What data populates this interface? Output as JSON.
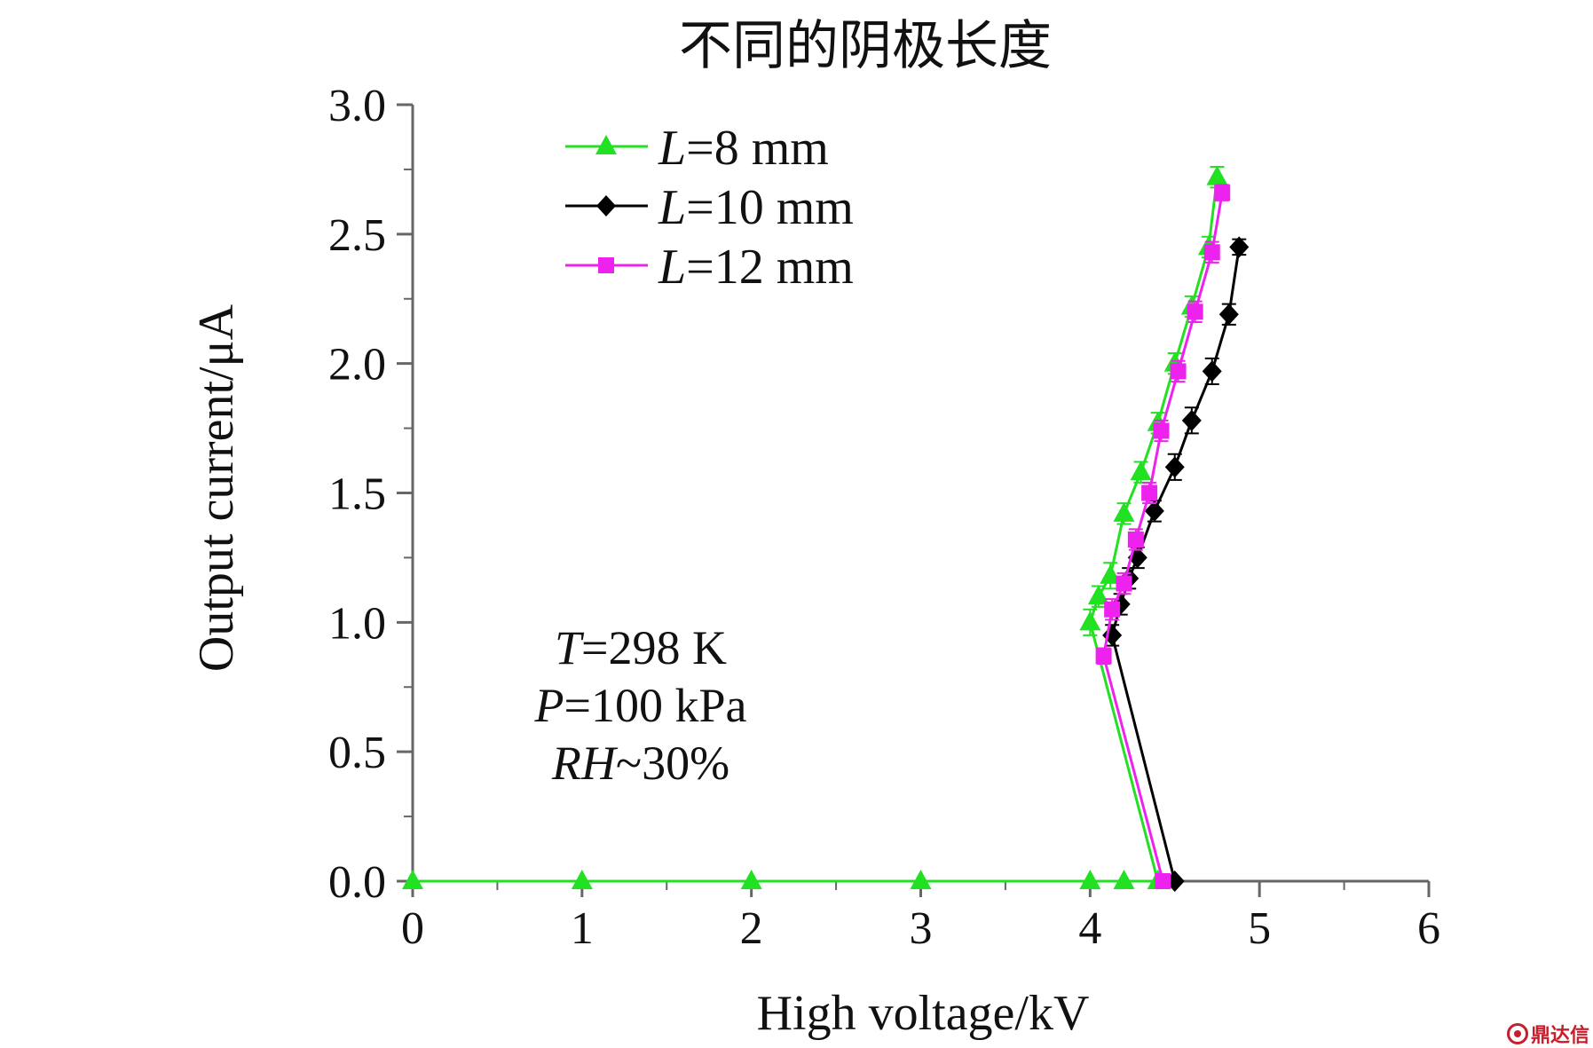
{
  "chart_data": {
    "type": "line",
    "title": "不同的阴极长度",
    "xlabel": "High voltage/kV",
    "ylabel": "Output current/μA",
    "xlim": [
      0,
      6
    ],
    "ylim": [
      0,
      3.0
    ],
    "xticks": [
      "0",
      "1",
      "2",
      "3",
      "4",
      "5",
      "6"
    ],
    "yticks": [
      "0.0",
      "0.5",
      "1.0",
      "1.5",
      "2.0",
      "2.5",
      "3.0"
    ],
    "grid": false,
    "legend_position": "top-left",
    "series": [
      {
        "name_var": "L",
        "name_rest": "=8 mm",
        "color": "#22e022",
        "marker": "triangle",
        "x": [
          0,
          1,
          2,
          3,
          4.0,
          4.2,
          4.4,
          4.0,
          4.05,
          4.12,
          4.2,
          4.3,
          4.4,
          4.5,
          4.6,
          4.7,
          4.75
        ],
        "y": [
          0,
          0,
          0,
          0,
          0,
          0,
          0,
          1.0,
          1.1,
          1.18,
          1.42,
          1.58,
          1.77,
          2.0,
          2.22,
          2.45,
          2.72
        ],
        "err": [
          0,
          0,
          0,
          0,
          0,
          0,
          0,
          0.05,
          0.04,
          0.05,
          0.04,
          0.04,
          0.04,
          0.04,
          0.04,
          0.04,
          0.04
        ]
      },
      {
        "name_var": "L",
        "name_rest": "=10 mm",
        "color": "#000000",
        "marker": "diamond",
        "x": [
          4.5,
          4.13,
          4.18,
          4.23,
          4.28,
          4.38,
          4.5,
          4.6,
          4.72,
          4.82,
          4.88
        ],
        "y": [
          0,
          0.95,
          1.07,
          1.17,
          1.25,
          1.43,
          1.6,
          1.78,
          1.97,
          2.19,
          2.45
        ],
        "err": [
          0,
          0.04,
          0.04,
          0.04,
          0.04,
          0.04,
          0.05,
          0.05,
          0.05,
          0.04,
          0.03
        ]
      },
      {
        "name_var": "L",
        "name_rest": "=12 mm",
        "color": "#ee22ee",
        "marker": "square",
        "x": [
          4.43,
          4.08,
          4.13,
          4.2,
          4.27,
          4.35,
          4.42,
          4.52,
          4.62,
          4.72,
          4.78
        ],
        "y": [
          0,
          0.87,
          1.05,
          1.15,
          1.32,
          1.5,
          1.74,
          1.97,
          2.2,
          2.43,
          2.66
        ],
        "err": [
          0,
          0.03,
          0.04,
          0.04,
          0.04,
          0.04,
          0.04,
          0.04,
          0.04,
          0.04,
          0.03
        ]
      }
    ],
    "annotations": [
      {
        "var": "T",
        "rest": "=298 K"
      },
      {
        "var": "P",
        "rest": "=100 kPa"
      },
      {
        "var": "RH",
        "rest": "~30%"
      }
    ]
  },
  "watermark": {
    "text": "鼎达信",
    "icon": "logo-circle-icon"
  }
}
